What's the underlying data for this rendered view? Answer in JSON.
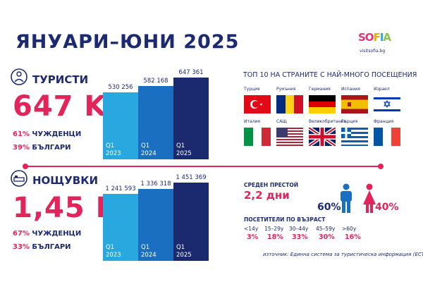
{
  "title": "ЯНУАРИ–ЮНИ 2025",
  "logo": {
    "letters": [
      "SO",
      "F",
      "I",
      "A"
    ],
    "site": "visitsofia.bg"
  },
  "tourists": {
    "label": "ТУРИСТИ",
    "total": "647 K",
    "foreign_pct": "61%",
    "foreign_label": "ЧУЖДЕНЦИ",
    "bulgarian_pct": "39%",
    "bulgarian_label": "БЪЛГАРИ"
  },
  "nights": {
    "label": "НОЩУВКИ",
    "total": "1,45 M",
    "foreign_pct": "67%",
    "foreign_label": "ЧУЖДЕНЦИ",
    "bulgarian_pct": "33%",
    "bulgarian_label": "БЪЛГАРИ"
  },
  "chart_data": [
    {
      "type": "bar",
      "categories": [
        "Q1\n2023",
        "Q1\n2024",
        "Q1\n2025"
      ],
      "values": [
        530256,
        582168,
        647361
      ],
      "value_labels": [
        "530 256",
        "582 168",
        "647 361"
      ],
      "colors": [
        "#29a8e0",
        "#1a6fc0",
        "#1b2a6e"
      ]
    },
    {
      "type": "bar",
      "categories": [
        "Q1\n2023",
        "Q1\n2024",
        "Q1\n2025"
      ],
      "values": [
        1241593,
        1336318,
        1451369
      ],
      "value_labels": [
        "1 241 593",
        "1 336 318",
        "1 451 369"
      ],
      "colors": [
        "#29a8e0",
        "#1a6fc0",
        "#1b2a6e"
      ]
    }
  ],
  "top10": {
    "title": "ТОП 10 НА СТРАНИТЕ С НАЙ-МНОГО ПОСЕЩЕНИЯ",
    "countries": [
      {
        "name": "Турция",
        "flag": "turkey-flag"
      },
      {
        "name": "Румъния",
        "flag": "romania-flag"
      },
      {
        "name": "Германия",
        "flag": "germany-flag"
      },
      {
        "name": "Испания",
        "flag": "spain-flag"
      },
      {
        "name": "Израел",
        "flag": "israel-flag"
      },
      {
        "name": "Италия",
        "flag": "italy-flag"
      },
      {
        "name": "САЩ",
        "flag": "usa-flag"
      },
      {
        "name": "Великобритания",
        "flag": "uk-flag"
      },
      {
        "name": "Гърция",
        "flag": "greece-flag"
      },
      {
        "name": "Франция",
        "flag": "france-flag"
      }
    ]
  },
  "stay": {
    "title": "СРЕДЕН ПРЕСТОЙ",
    "value": "2,2 дни"
  },
  "gender": {
    "male_pct": "60%",
    "female_pct": "40%",
    "male_color": "#1a6fc0",
    "female_color": "#e3245a"
  },
  "age": {
    "title": "ПОСЕТИТЕЛИ ПО ВЪЗРАСТ",
    "groups": [
      {
        "label": "<14y",
        "value": "3%"
      },
      {
        "label": "15–29y",
        "value": "18%"
      },
      {
        "label": "30–44y",
        "value": "33%"
      },
      {
        "label": "45–59y",
        "value": "30%"
      },
      {
        "label": ">60y",
        "value": "16%"
      }
    ]
  },
  "source": "източник: Единна система за туристическа информация (ЕСТИ)"
}
